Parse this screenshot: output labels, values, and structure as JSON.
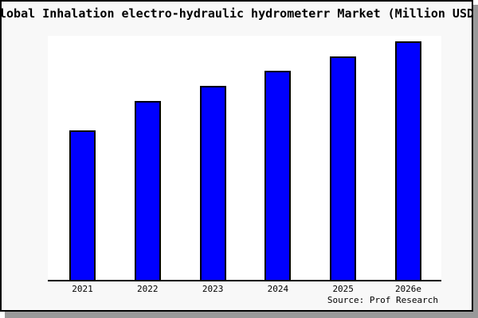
{
  "window": {
    "title": "Global Inhalation electro-hydraulic hydrometerr Market (Million USD)"
  },
  "chart_data": {
    "type": "bar",
    "title": "Global Inhalation electro-hydraulic hydrometerr Market (Million USD)",
    "categories": [
      "2021",
      "2022",
      "2023",
      "2024",
      "2025",
      "2026e"
    ],
    "values": [
      62.7,
      75.0,
      81.3,
      87.7,
      93.7,
      100.0
    ],
    "values_note": "No y-axis ticks or data labels are shown in the image; values are relative bar heights normalized so 2026e = 100.",
    "xlabel": "",
    "ylabel": "",
    "ylim": [
      0,
      102.5
    ],
    "grid": false,
    "legend": null,
    "bar_fill_color": "#0000ff",
    "bar_border_color": "#000000",
    "annotations": [
      "Source: Prof Research"
    ]
  },
  "source": {
    "label": "Source: Prof Research"
  },
  "colors": {
    "figure_background": "#f8f8f8",
    "plot_background": "#ffffff",
    "bar_fill": "#0000ff",
    "border": "#000000",
    "shadow": "#999999",
    "text": "#000000"
  }
}
